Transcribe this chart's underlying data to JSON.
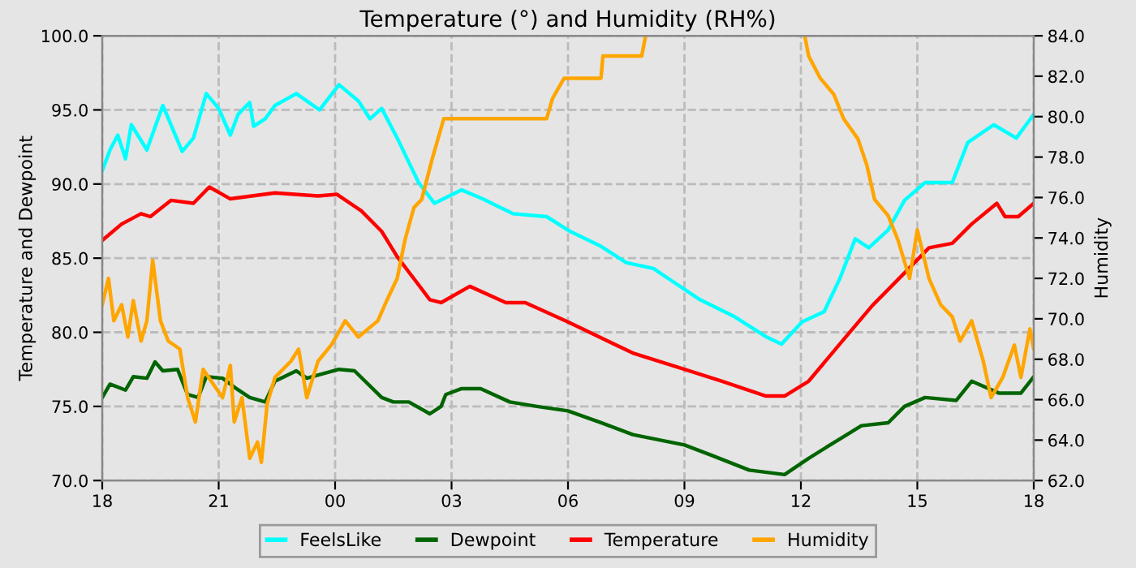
{
  "chart_data": {
    "type": "line",
    "title": "Temperature (°) and Humidity (RH%)",
    "ylabel": "Temperature and Dewpoint",
    "y2label": "Humidity",
    "xlim": [
      18,
      42
    ],
    "xticks": [
      {
        "value": 18,
        "label": "18"
      },
      {
        "value": 21,
        "label": "21"
      },
      {
        "value": 24,
        "label": "00"
      },
      {
        "value": 27,
        "label": "03"
      },
      {
        "value": 30,
        "label": "06"
      },
      {
        "value": 33,
        "label": "09"
      },
      {
        "value": 36,
        "label": "12"
      },
      {
        "value": 39,
        "label": "15"
      },
      {
        "value": 42,
        "label": "18"
      }
    ],
    "ylim": [
      70,
      100
    ],
    "yticks": [
      {
        "value": 70,
        "label": "70.0"
      },
      {
        "value": 75,
        "label": "75.0"
      },
      {
        "value": 80,
        "label": "80.0"
      },
      {
        "value": 85,
        "label": "85.0"
      },
      {
        "value": 90,
        "label": "90.0"
      },
      {
        "value": 95,
        "label": "95.0"
      },
      {
        "value": 100,
        "label": "100.0"
      }
    ],
    "y2lim": [
      62,
      84
    ],
    "y2ticks": [
      {
        "value": 62,
        "label": "62.0"
      },
      {
        "value": 64,
        "label": "64.0"
      },
      {
        "value": 66,
        "label": "66.0"
      },
      {
        "value": 68,
        "label": "68.0"
      },
      {
        "value": 70,
        "label": "70.0"
      },
      {
        "value": 72,
        "label": "72.0"
      },
      {
        "value": 74,
        "label": "74.0"
      },
      {
        "value": 76,
        "label": "76.0"
      },
      {
        "value": 78,
        "label": "78.0"
      },
      {
        "value": 80,
        "label": "80.0"
      },
      {
        "value": 82,
        "label": "82.0"
      },
      {
        "value": 84,
        "label": "84.0"
      }
    ],
    "grid": true,
    "legend": "bottom",
    "marker": "none",
    "line_style": "solid",
    "series": [
      {
        "name": "FeelsLike",
        "color": "#00ffff",
        "x": [
          18,
          18.2,
          18.4,
          18.6,
          18.75,
          19.15,
          19.56,
          20.06,
          20.35,
          20.68,
          21.0,
          21.3,
          21.5,
          21.8,
          21.9,
          22.2,
          22.45,
          23.0,
          23.6,
          24.1,
          24.6,
          24.9,
          25.2,
          25.6,
          26.15,
          26.56,
          27.26,
          27.8,
          28.58,
          29.45,
          30.06,
          30.85,
          31.5,
          32.2,
          32.6,
          33.4,
          34.26,
          35.1,
          35.5,
          36.03,
          36.6,
          37.0,
          37.4,
          37.75,
          38.25,
          38.67,
          39.2,
          39.9,
          40.3,
          40.97,
          41.55,
          42
        ],
        "values": [
          90.9,
          92.3,
          93.3,
          91.7,
          94.0,
          92.3,
          95.3,
          92.2,
          93.1,
          96.1,
          95.1,
          93.3,
          94.7,
          95.5,
          93.9,
          94.4,
          95.3,
          96.1,
          95.0,
          96.7,
          95.6,
          94.4,
          95.1,
          93.1,
          90.1,
          88.7,
          89.6,
          89.0,
          88.0,
          87.8,
          86.8,
          85.8,
          84.7,
          84.3,
          83.6,
          82.2,
          81.1,
          79.7,
          79.2,
          80.7,
          81.4,
          83.6,
          86.3,
          85.7,
          86.9,
          88.9,
          90.1,
          90.1,
          92.8,
          94.0,
          93.1,
          94.7
        ]
      },
      {
        "name": "Dewpoint",
        "color": "#006400",
        "x": [
          18,
          18.2,
          18.6,
          18.8,
          19.15,
          19.36,
          19.56,
          19.94,
          20.2,
          20.47,
          20.68,
          21.1,
          21.4,
          21.8,
          22.2,
          22.45,
          23.0,
          23.27,
          23.68,
          24.1,
          24.5,
          25.2,
          25.5,
          25.9,
          26.44,
          26.73,
          26.85,
          27.26,
          27.75,
          28.5,
          29.2,
          30.0,
          30.85,
          31.67,
          33.0,
          33.7,
          34.67,
          35.58,
          36.2,
          37.0,
          37.56,
          38.25,
          38.67,
          39.2,
          40.0,
          40.4,
          41.1,
          41.67,
          42
        ],
        "values": [
          75.6,
          76.5,
          76.1,
          77.0,
          76.9,
          78.0,
          77.4,
          77.5,
          75.8,
          75.6,
          77.0,
          76.9,
          76.3,
          75.6,
          75.3,
          76.7,
          77.4,
          76.9,
          77.2,
          77.5,
          77.4,
          75.6,
          75.3,
          75.3,
          74.5,
          75.0,
          75.8,
          76.2,
          76.2,
          75.3,
          75.0,
          74.7,
          73.9,
          73.1,
          72.4,
          71.7,
          70.7,
          70.4,
          71.5,
          72.8,
          73.7,
          73.9,
          75.0,
          75.6,
          75.4,
          76.7,
          75.9,
          75.9,
          77.0
        ]
      },
      {
        "name": "Temperature",
        "color": "#ff0000",
        "x": [
          18,
          18.5,
          19.0,
          19.24,
          19.77,
          20.35,
          20.76,
          21.3,
          22.45,
          23.56,
          24.05,
          24.67,
          25.2,
          25.6,
          26.44,
          26.73,
          27.47,
          28.4,
          28.9,
          30.0,
          31.67,
          33.0,
          33.97,
          35.1,
          35.58,
          36.2,
          37.0,
          37.84,
          38.67,
          39.3,
          39.9,
          40.4,
          41.05,
          41.26,
          41.6,
          42
        ],
        "values": [
          86.2,
          87.3,
          88.0,
          87.8,
          88.9,
          88.7,
          89.8,
          89.0,
          89.4,
          89.2,
          89.3,
          88.2,
          86.8,
          85.1,
          82.2,
          82.0,
          83.1,
          82.0,
          82.0,
          80.7,
          78.6,
          77.5,
          76.7,
          75.7,
          75.7,
          76.7,
          79.2,
          81.8,
          84.0,
          85.7,
          86.0,
          87.3,
          88.7,
          87.8,
          87.8,
          88.7
        ]
      },
      {
        "name": "Humidity",
        "color": "#ffa500",
        "axis": "y2",
        "x": [
          18,
          18.16,
          18.3,
          18.5,
          18.66,
          18.8,
          19.0,
          19.15,
          19.3,
          19.5,
          19.7,
          20.0,
          20.2,
          20.4,
          20.6,
          21.1,
          21.3,
          21.4,
          21.6,
          21.8,
          22.0,
          22.1,
          22.25,
          22.45,
          22.86,
          23.06,
          23.27,
          23.56,
          23.9,
          24.26,
          24.6,
          25.1,
          25.33,
          25.6,
          25.8,
          26.03,
          26.23,
          26.5,
          26.65,
          26.8,
          29.45,
          29.6,
          29.9,
          30.85,
          30.9,
          31.9,
          32.0,
          34.0,
          36.1,
          36.2,
          36.5,
          36.85,
          37.1,
          37.47,
          37.7,
          37.9,
          38.25,
          38.5,
          38.8,
          39.0,
          39.3,
          39.6,
          39.9,
          40.1,
          40.4,
          40.7,
          40.9,
          41.2,
          41.5,
          41.67,
          41.9,
          42
        ],
        "values": [
          70.7,
          72.0,
          69.9,
          70.7,
          69.1,
          70.9,
          68.9,
          69.9,
          72.9,
          69.9,
          68.9,
          68.5,
          66.1,
          64.9,
          67.5,
          66.1,
          67.7,
          64.9,
          66.1,
          63.1,
          63.9,
          62.9,
          65.8,
          67.1,
          67.9,
          68.5,
          66.1,
          67.9,
          68.7,
          69.9,
          69.1,
          69.9,
          70.9,
          72.0,
          73.9,
          75.5,
          75.9,
          77.9,
          78.9,
          79.9,
          79.9,
          80.9,
          81.9,
          81.9,
          83.0,
          83.0,
          84.0,
          null,
          84.0,
          83.0,
          81.9,
          81.1,
          79.9,
          78.9,
          77.6,
          75.9,
          75.1,
          73.9,
          72.0,
          74.4,
          72.0,
          70.7,
          70.1,
          68.9,
          69.9,
          67.9,
          66.1,
          67.1,
          68.7,
          67.1,
          69.5,
          68.5
        ]
      }
    ]
  }
}
